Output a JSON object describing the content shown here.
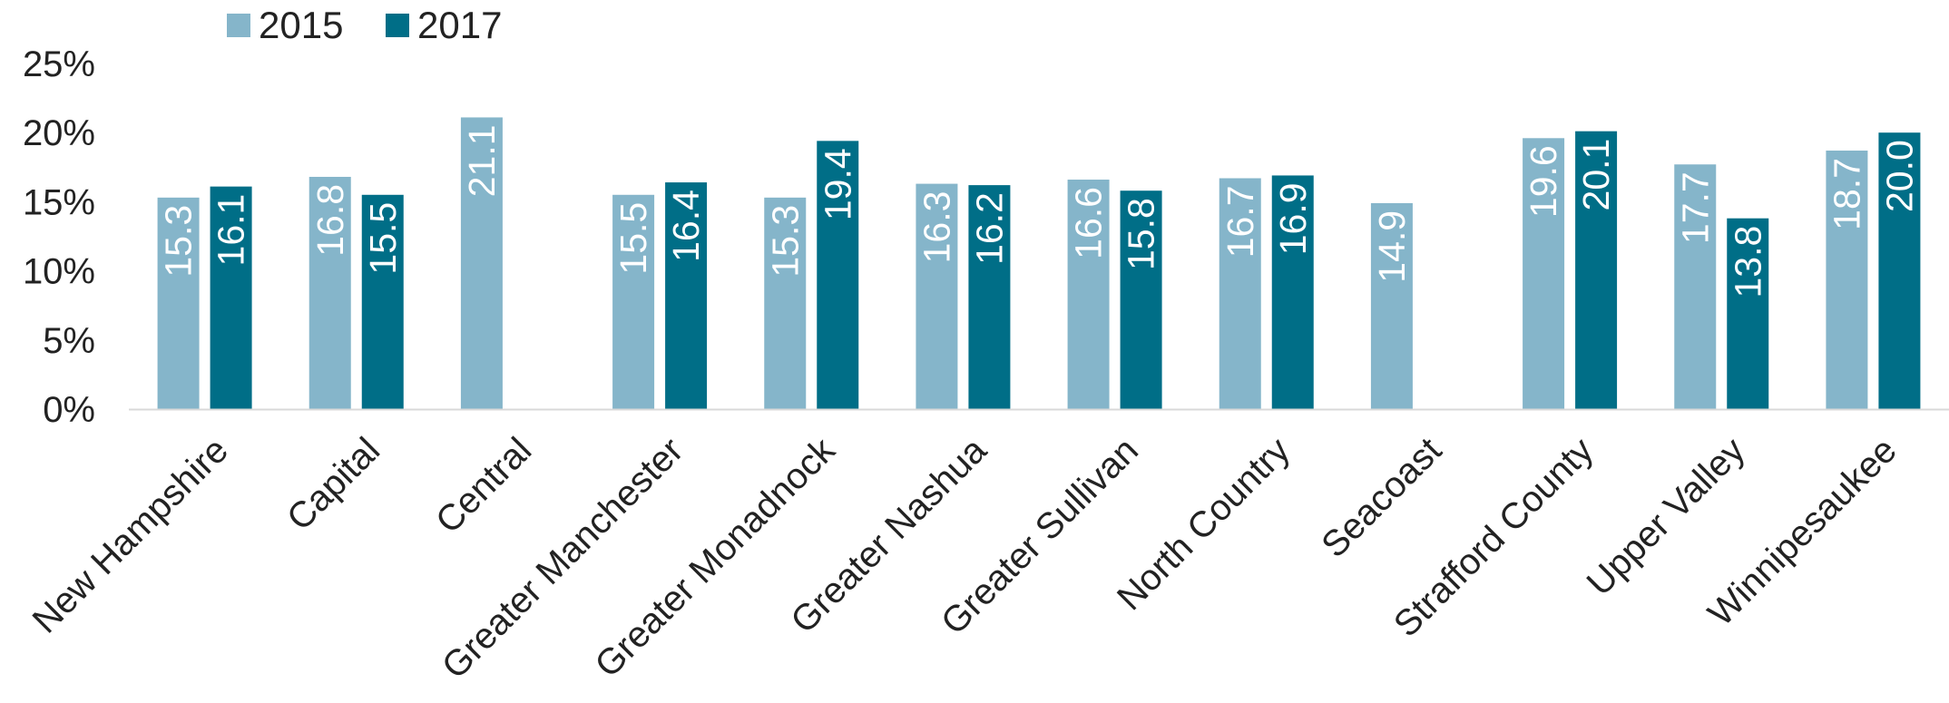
{
  "chart_data": {
    "type": "bar",
    "title": "",
    "xlabel": "",
    "ylabel": "",
    "ylim": [
      0,
      25
    ],
    "yticks": [
      "0%",
      "5%",
      "10%",
      "15%",
      "20%",
      "25%"
    ],
    "grid": false,
    "legend_position": "top-left",
    "categories": [
      "New Hampshire",
      "Capital",
      "Central",
      "Greater Manchester",
      "Greater Monadnock",
      "Greater Nashua",
      "Greater Sullivan",
      "North Country",
      "Seacoast",
      "Strafford County",
      "Upper Valley",
      "Winnipesaukee"
    ],
    "series": [
      {
        "name": "2015",
        "color": "#85b5ca",
        "values": [
          15.3,
          16.8,
          21.1,
          15.5,
          15.3,
          16.3,
          16.6,
          16.7,
          14.9,
          19.6,
          17.7,
          18.7
        ],
        "labels": [
          "15.3",
          "16.8",
          "21.1",
          "15.5",
          "15.3",
          "16.3",
          "16.6",
          "16.7",
          "14.9",
          "19.6",
          "17.7",
          "18.7"
        ]
      },
      {
        "name": "2017",
        "color": "#006e87",
        "values": [
          16.1,
          15.5,
          null,
          16.4,
          19.4,
          16.2,
          15.8,
          16.9,
          null,
          20.1,
          13.8,
          20.0
        ],
        "labels": [
          "16.1",
          "15.5",
          "",
          "16.4",
          "19.4",
          "16.2",
          "15.8",
          "16.9",
          "",
          "20.1",
          "13.8",
          "20.0"
        ]
      }
    ]
  }
}
